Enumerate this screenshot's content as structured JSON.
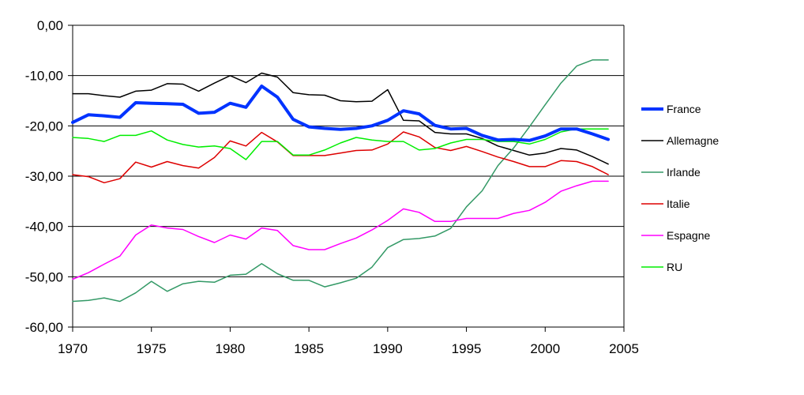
{
  "chart_data": {
    "type": "line",
    "title": "",
    "xlabel": "",
    "ylabel": "",
    "xlim": [
      1970,
      2005
    ],
    "ylim": [
      -60,
      0
    ],
    "x_ticks": [
      1970,
      1975,
      1980,
      1985,
      1990,
      1995,
      2000,
      2005
    ],
    "y_ticks": [
      0,
      -10,
      -20,
      -30,
      -40,
      -50,
      -60
    ],
    "x_tick_labels": [
      "1970",
      "1975",
      "1980",
      "1985",
      "1990",
      "1995",
      "2000",
      "2005"
    ],
    "y_tick_labels": [
      "0,00",
      "-10,00",
      "-20,00",
      "-30,00",
      "-40,00",
      "-50,00",
      "-60,00"
    ],
    "grid": "horizontal",
    "legend_position": "right",
    "x": [
      1970,
      1971,
      1972,
      1973,
      1974,
      1975,
      1976,
      1977,
      1978,
      1979,
      1980,
      1981,
      1982,
      1983,
      1984,
      1985,
      1986,
      1987,
      1988,
      1989,
      1990,
      1991,
      1992,
      1993,
      1994,
      1995,
      1996,
      1997,
      1998,
      1999,
      2000,
      2001,
      2002,
      2003,
      2004
    ],
    "series": [
      {
        "name": "France",
        "color": "#0033ff",
        "width": 4,
        "values": [
          -19.3,
          -17.8,
          -18.0,
          -18.3,
          -15.4,
          -15.5,
          -15.6,
          -15.7,
          -17.5,
          -17.3,
          -15.5,
          -16.3,
          -12.1,
          -14.3,
          -18.7,
          -20.2,
          -20.5,
          -20.7,
          -20.5,
          -20.0,
          -18.9,
          -17.0,
          -17.6,
          -19.9,
          -20.6,
          -20.5,
          -21.9,
          -22.8,
          -22.7,
          -22.9,
          -22.0,
          -20.6,
          -20.6,
          -21.6,
          -22.7
        ]
      },
      {
        "name": "Allemagne",
        "color": "#000000",
        "width": 1.5,
        "values": [
          -13.6,
          -13.6,
          -14.0,
          -14.3,
          -13.1,
          -12.9,
          -11.6,
          -11.7,
          -13.1,
          -11.5,
          -10.0,
          -11.4,
          -9.5,
          -10.3,
          -13.4,
          -13.8,
          -13.9,
          -15.0,
          -15.2,
          -15.1,
          -12.8,
          -18.9,
          -19.0,
          -21.3,
          -21.6,
          -21.6,
          -22.5,
          -24.0,
          -24.9,
          -25.8,
          -25.4,
          -24.5,
          -24.8,
          -26.1,
          -27.6
        ]
      },
      {
        "name": "Irlande",
        "color": "#339966",
        "width": 1.5,
        "values": [
          -54.9,
          -54.7,
          -54.2,
          -54.9,
          -53.2,
          -50.9,
          -52.9,
          -51.4,
          -50.9,
          -51.1,
          -49.7,
          -49.5,
          -47.4,
          -49.4,
          -50.7,
          -50.7,
          -52.0,
          -51.2,
          -50.3,
          -48.1,
          -44.2,
          -42.6,
          -42.4,
          -41.9,
          -40.4,
          -36.1,
          -32.9,
          -27.9,
          -24.4,
          -20.2,
          -15.8,
          -11.5,
          -8.1,
          -6.9,
          -6.9
        ]
      },
      {
        "name": "Italie",
        "color": "#dd0000",
        "width": 1.5,
        "values": [
          -29.7,
          -30.1,
          -31.3,
          -30.5,
          -27.2,
          -28.2,
          -27.1,
          -27.9,
          -28.4,
          -26.3,
          -23.0,
          -24.0,
          -21.3,
          -23.2,
          -25.9,
          -25.9,
          -25.9,
          -25.4,
          -24.9,
          -24.8,
          -23.6,
          -21.2,
          -22.2,
          -24.3,
          -24.9,
          -24.1,
          -25.1,
          -26.2,
          -27.1,
          -28.1,
          -28.1,
          -26.9,
          -27.1,
          -28.1,
          -29.7
        ]
      },
      {
        "name": "Espagne",
        "color": "#ff00ff",
        "width": 1.5,
        "values": [
          -50.5,
          -49.2,
          -47.5,
          -45.9,
          -41.7,
          -39.7,
          -40.3,
          -40.6,
          -42.0,
          -43.2,
          -41.7,
          -42.5,
          -40.3,
          -40.8,
          -43.8,
          -44.6,
          -44.6,
          -43.4,
          -42.3,
          -40.7,
          -38.8,
          -36.5,
          -37.2,
          -39.0,
          -39.0,
          -38.4,
          -38.4,
          -38.4,
          -37.4,
          -36.8,
          -35.2,
          -33.0,
          -31.9,
          -31.0,
          -31.0
        ]
      },
      {
        "name": "RU",
        "color": "#00ee00",
        "width": 1.5,
        "values": [
          -22.3,
          -22.5,
          -23.1,
          -21.9,
          -21.9,
          -21.0,
          -22.8,
          -23.7,
          -24.2,
          -24.0,
          -24.5,
          -26.7,
          -23.1,
          -23.1,
          -25.8,
          -25.8,
          -24.8,
          -23.4,
          -22.3,
          -22.8,
          -23.1,
          -23.1,
          -24.8,
          -24.5,
          -23.4,
          -22.7,
          -22.7,
          -23.1,
          -23.1,
          -23.6,
          -22.7,
          -21.2,
          -20.6,
          -20.6,
          -20.6
        ]
      }
    ]
  }
}
